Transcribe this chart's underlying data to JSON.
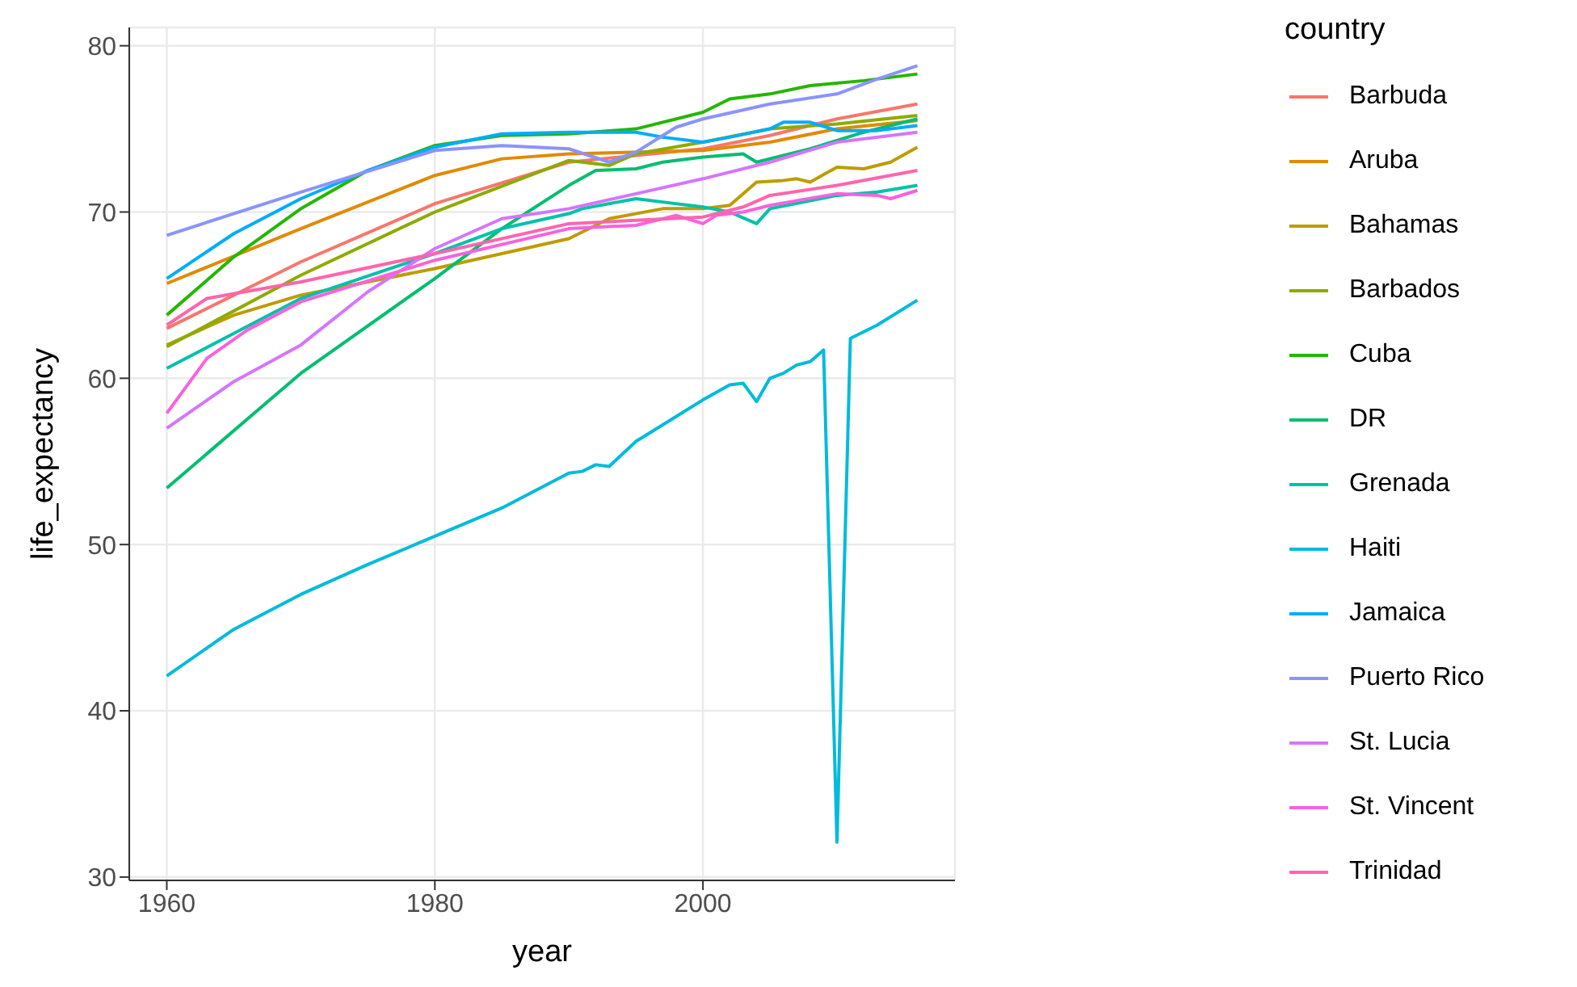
{
  "chart_data": {
    "type": "line",
    "xlabel": "year",
    "ylabel": "life_expectancy",
    "legend_title": "country",
    "legend": "right",
    "grid": true,
    "marker": "none",
    "line_style": "solid",
    "xlim": [
      1957.2,
      2018.8
    ],
    "xticks": [
      1960,
      1980,
      2000
    ],
    "ylim": [
      29.8,
      81.1
    ],
    "yticks": [
      30,
      40,
      50,
      60,
      70,
      80
    ],
    "series": [
      {
        "name": "Barbuda",
        "color": "#f8766d",
        "x": [
          1960,
          1970,
          1980,
          1990,
          2000,
          2005,
          2010,
          2016
        ],
        "values": [
          63.0,
          67.0,
          70.5,
          73.0,
          73.8,
          74.6,
          75.6,
          76.5
        ]
      },
      {
        "name": "Aruba",
        "color": "#e18a00",
        "x": [
          1960,
          1970,
          1980,
          1985,
          1990,
          2000,
          2005,
          2010,
          2016
        ],
        "values": [
          65.7,
          69.0,
          72.2,
          73.2,
          73.5,
          73.7,
          74.2,
          75.0,
          75.5
        ]
      },
      {
        "name": "Bahamas",
        "color": "#be9c00",
        "x": [
          1960,
          1965,
          1970,
          1980,
          1990,
          1993,
          1997,
          2000,
          2002,
          2004,
          2006,
          2007,
          2008,
          2010,
          2012,
          2014,
          2016
        ],
        "values": [
          62.0,
          63.8,
          65.0,
          66.6,
          68.4,
          69.6,
          70.2,
          70.2,
          70.4,
          71.8,
          71.9,
          72.0,
          71.8,
          72.7,
          72.6,
          73.0,
          73.9
        ]
      },
      {
        "name": "Barbados",
        "color": "#8cab00",
        "x": [
          1960,
          1970,
          1980,
          1990,
          1993,
          1995,
          2000,
          2005,
          2010,
          2016
        ],
        "values": [
          61.9,
          66.2,
          70.0,
          73.1,
          72.8,
          73.5,
          74.2,
          75.0,
          75.3,
          75.8
        ]
      },
      {
        "name": "Cuba",
        "color": "#24b700",
        "x": [
          1960,
          1965,
          1970,
          1975,
          1980,
          1985,
          1990,
          1995,
          2000,
          2002,
          2005,
          2008,
          2012,
          2016
        ],
        "values": [
          63.8,
          67.3,
          70.2,
          72.5,
          74.0,
          74.6,
          74.7,
          75.0,
          76.0,
          76.8,
          77.1,
          77.6,
          77.9,
          78.3
        ]
      },
      {
        "name": "DR",
        "color": "#00be70",
        "x": [
          1960,
          1970,
          1980,
          1985,
          1990,
          1992,
          1995,
          1997,
          2000,
          2003,
          2004,
          2008,
          2012,
          2016
        ],
        "values": [
          53.4,
          60.3,
          66.0,
          69.0,
          71.6,
          72.5,
          72.6,
          73.0,
          73.3,
          73.5,
          73.0,
          73.8,
          74.8,
          75.6
        ]
      },
      {
        "name": "Grenada",
        "color": "#00c1ab",
        "x": [
          1960,
          1970,
          1980,
          1985,
          1990,
          1991,
          1995,
          1997,
          2000,
          2002,
          2004,
          2005,
          2010,
          2013,
          2016
        ],
        "values": [
          60.6,
          64.8,
          67.5,
          69.0,
          69.9,
          70.2,
          70.8,
          70.6,
          70.3,
          70.0,
          69.3,
          70.2,
          71.0,
          71.2,
          71.6
        ]
      },
      {
        "name": "Haiti",
        "color": "#00bbda",
        "x": [
          1960,
          1965,
          1970,
          1975,
          1980,
          1985,
          1990,
          1991,
          1992,
          1993,
          1995,
          1997,
          2000,
          2002,
          2003,
          2004,
          2005,
          2006,
          2007,
          2008,
          2009,
          2010,
          2011,
          2013,
          2016
        ],
        "values": [
          42.1,
          44.9,
          47.0,
          48.8,
          50.5,
          52.2,
          54.3,
          54.4,
          54.8,
          54.7,
          56.2,
          57.2,
          58.7,
          59.6,
          59.7,
          58.6,
          60.0,
          60.3,
          60.8,
          61.0,
          61.7,
          32.1,
          62.4,
          63.2,
          64.7
        ]
      },
      {
        "name": "Jamaica",
        "color": "#00acfc",
        "x": [
          1960,
          1965,
          1970,
          1975,
          1980,
          1985,
          1990,
          1995,
          1997,
          2000,
          2002,
          2005,
          2006,
          2008,
          2010,
          2013,
          2016
        ],
        "values": [
          66.0,
          68.7,
          70.8,
          72.5,
          73.9,
          74.7,
          74.8,
          74.8,
          74.5,
          74.2,
          74.5,
          75.0,
          75.4,
          75.4,
          74.9,
          74.9,
          75.2
        ]
      },
      {
        "name": "Puerto Rico",
        "color": "#8b93ff",
        "x": [
          1960,
          1970,
          1980,
          1985,
          1990,
          1993,
          1995,
          1998,
          2000,
          2005,
          2010,
          2013,
          2016
        ],
        "values": [
          68.6,
          71.2,
          73.7,
          74.0,
          73.8,
          73.0,
          73.6,
          75.1,
          75.6,
          76.5,
          77.1,
          78.0,
          78.8
        ]
      },
      {
        "name": "St. Lucia",
        "color": "#d575fe",
        "x": [
          1960,
          1965,
          1970,
          1975,
          1980,
          1985,
          1990,
          1995,
          2000,
          2005,
          2010,
          2016
        ],
        "values": [
          57.0,
          59.8,
          62.0,
          65.2,
          67.8,
          69.6,
          70.2,
          71.1,
          72.0,
          73.0,
          74.2,
          74.8
        ]
      },
      {
        "name": "St. Vincent",
        "color": "#f962dd",
        "x": [
          1960,
          1963,
          1966,
          1970,
          1980,
          1990,
          1995,
          1998,
          2000,
          2001,
          2003,
          2005,
          2010,
          2013,
          2014,
          2016
        ],
        "values": [
          57.9,
          61.2,
          62.9,
          64.6,
          67.1,
          69.0,
          69.2,
          69.8,
          69.3,
          69.8,
          70.0,
          70.4,
          71.1,
          71.0,
          70.8,
          71.3
        ]
      },
      {
        "name": "Trinidad",
        "color": "#ff65ac",
        "x": [
          1960,
          1963,
          1970,
          1980,
          1990,
          1995,
          2000,
          2003,
          2005,
          2010,
          2016
        ],
        "values": [
          63.2,
          64.8,
          65.8,
          67.5,
          69.3,
          69.5,
          69.7,
          70.3,
          71.0,
          71.6,
          72.5
        ]
      }
    ]
  }
}
